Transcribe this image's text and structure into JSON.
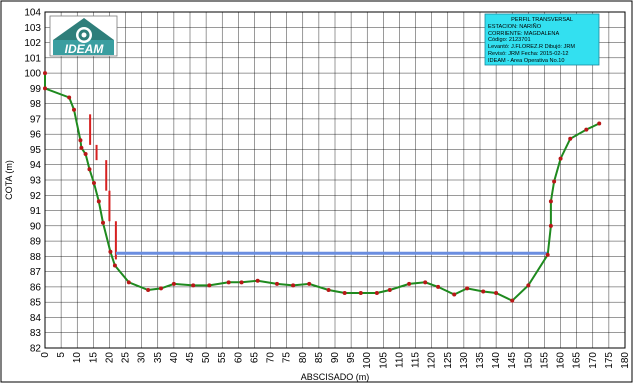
{
  "chart_data": {
    "type": "line",
    "xlabel": "ABSCISADO (m)",
    "ylabel": "COTA (m)",
    "xlim": [
      0,
      180
    ],
    "ylim": [
      82,
      104
    ],
    "x_ticks": [
      0,
      5,
      10,
      15,
      20,
      25,
      30,
      35,
      40,
      45,
      50,
      55,
      60,
      65,
      70,
      75,
      80,
      85,
      90,
      95,
      100,
      105,
      110,
      115,
      120,
      125,
      130,
      135,
      140,
      145,
      150,
      155,
      160,
      165,
      170,
      175,
      180
    ],
    "y_ticks": [
      82,
      83,
      84,
      85,
      86,
      87,
      88,
      89,
      90,
      91,
      92,
      93,
      94,
      95,
      96,
      97,
      98,
      99,
      100,
      101,
      102,
      103,
      104
    ],
    "grid": true,
    "series": [
      {
        "role": "profile",
        "color": "#1f8a1f",
        "marker_color": "#b81818",
        "points": [
          [
            0,
            100.0
          ],
          [
            0,
            99.0
          ],
          [
            7.5,
            98.4
          ],
          [
            9,
            97.6
          ],
          [
            11,
            95.6
          ],
          [
            11.3,
            95.1
          ],
          [
            12.6,
            94.7
          ],
          [
            13.8,
            93.7
          ],
          [
            15.2,
            92.8
          ],
          [
            16.7,
            91.6
          ],
          [
            18,
            90.2
          ],
          [
            20.3,
            88.3
          ],
          [
            21.7,
            87.4
          ],
          [
            26,
            86.3
          ],
          [
            32,
            85.8
          ],
          [
            36,
            85.9
          ],
          [
            40,
            86.2
          ],
          [
            46,
            86.1
          ],
          [
            51,
            86.1
          ],
          [
            57,
            86.3
          ],
          [
            61,
            86.3
          ],
          [
            66,
            86.4
          ],
          [
            72,
            86.2
          ],
          [
            77,
            86.1
          ],
          [
            82,
            86.2
          ],
          [
            88,
            85.8
          ],
          [
            93,
            85.6
          ],
          [
            98,
            85.6
          ],
          [
            103,
            85.6
          ],
          [
            107,
            85.8
          ],
          [
            113,
            86.2
          ],
          [
            118,
            86.3
          ],
          [
            122,
            86.0
          ],
          [
            127,
            85.5
          ],
          [
            131,
            85.9
          ],
          [
            136,
            85.7
          ],
          [
            140,
            85.6
          ],
          [
            145,
            85.1
          ],
          [
            150,
            86.1
          ],
          [
            156,
            88.1
          ],
          [
            157,
            90.0
          ],
          [
            157,
            91.6
          ],
          [
            158,
            92.9
          ],
          [
            160,
            94.4
          ],
          [
            163,
            95.7
          ],
          [
            168,
            96.3
          ],
          [
            172,
            96.7
          ]
        ]
      }
    ],
    "water_level": {
      "y": 88.2,
      "x_start": 22,
      "x_end": 156,
      "color": "#6b8ee0"
    },
    "staff_gauges": {
      "color": "#d62020",
      "segments": [
        [
          14,
          97.3,
          14,
          95.3
        ],
        [
          16,
          95.3,
          16,
          94.3
        ],
        [
          19,
          94.3,
          19,
          92.3
        ],
        [
          20,
          92.3,
          20,
          90.3
        ],
        [
          22,
          90.3,
          22,
          87.8
        ]
      ]
    }
  },
  "logo": {
    "text": "IDEAM"
  },
  "info_box": {
    "lines": [
      "PERFIL TRANSVERSAL",
      "ESTACION:          NARIÑO",
      "CORRIENTE:        MAGDALENA",
      "Código:              2123701",
      "Levantó: J.FLOREZ.R  Dibujó: JRM",
      "Revisó: JRM      Fecha: 2015-02-12",
      "IDEAM - Area Operativa No.10"
    ],
    "background": "#33e0f0"
  },
  "colors": {
    "frame": "#000000",
    "grid": "#000000",
    "plot_bg": "#ffffff"
  }
}
